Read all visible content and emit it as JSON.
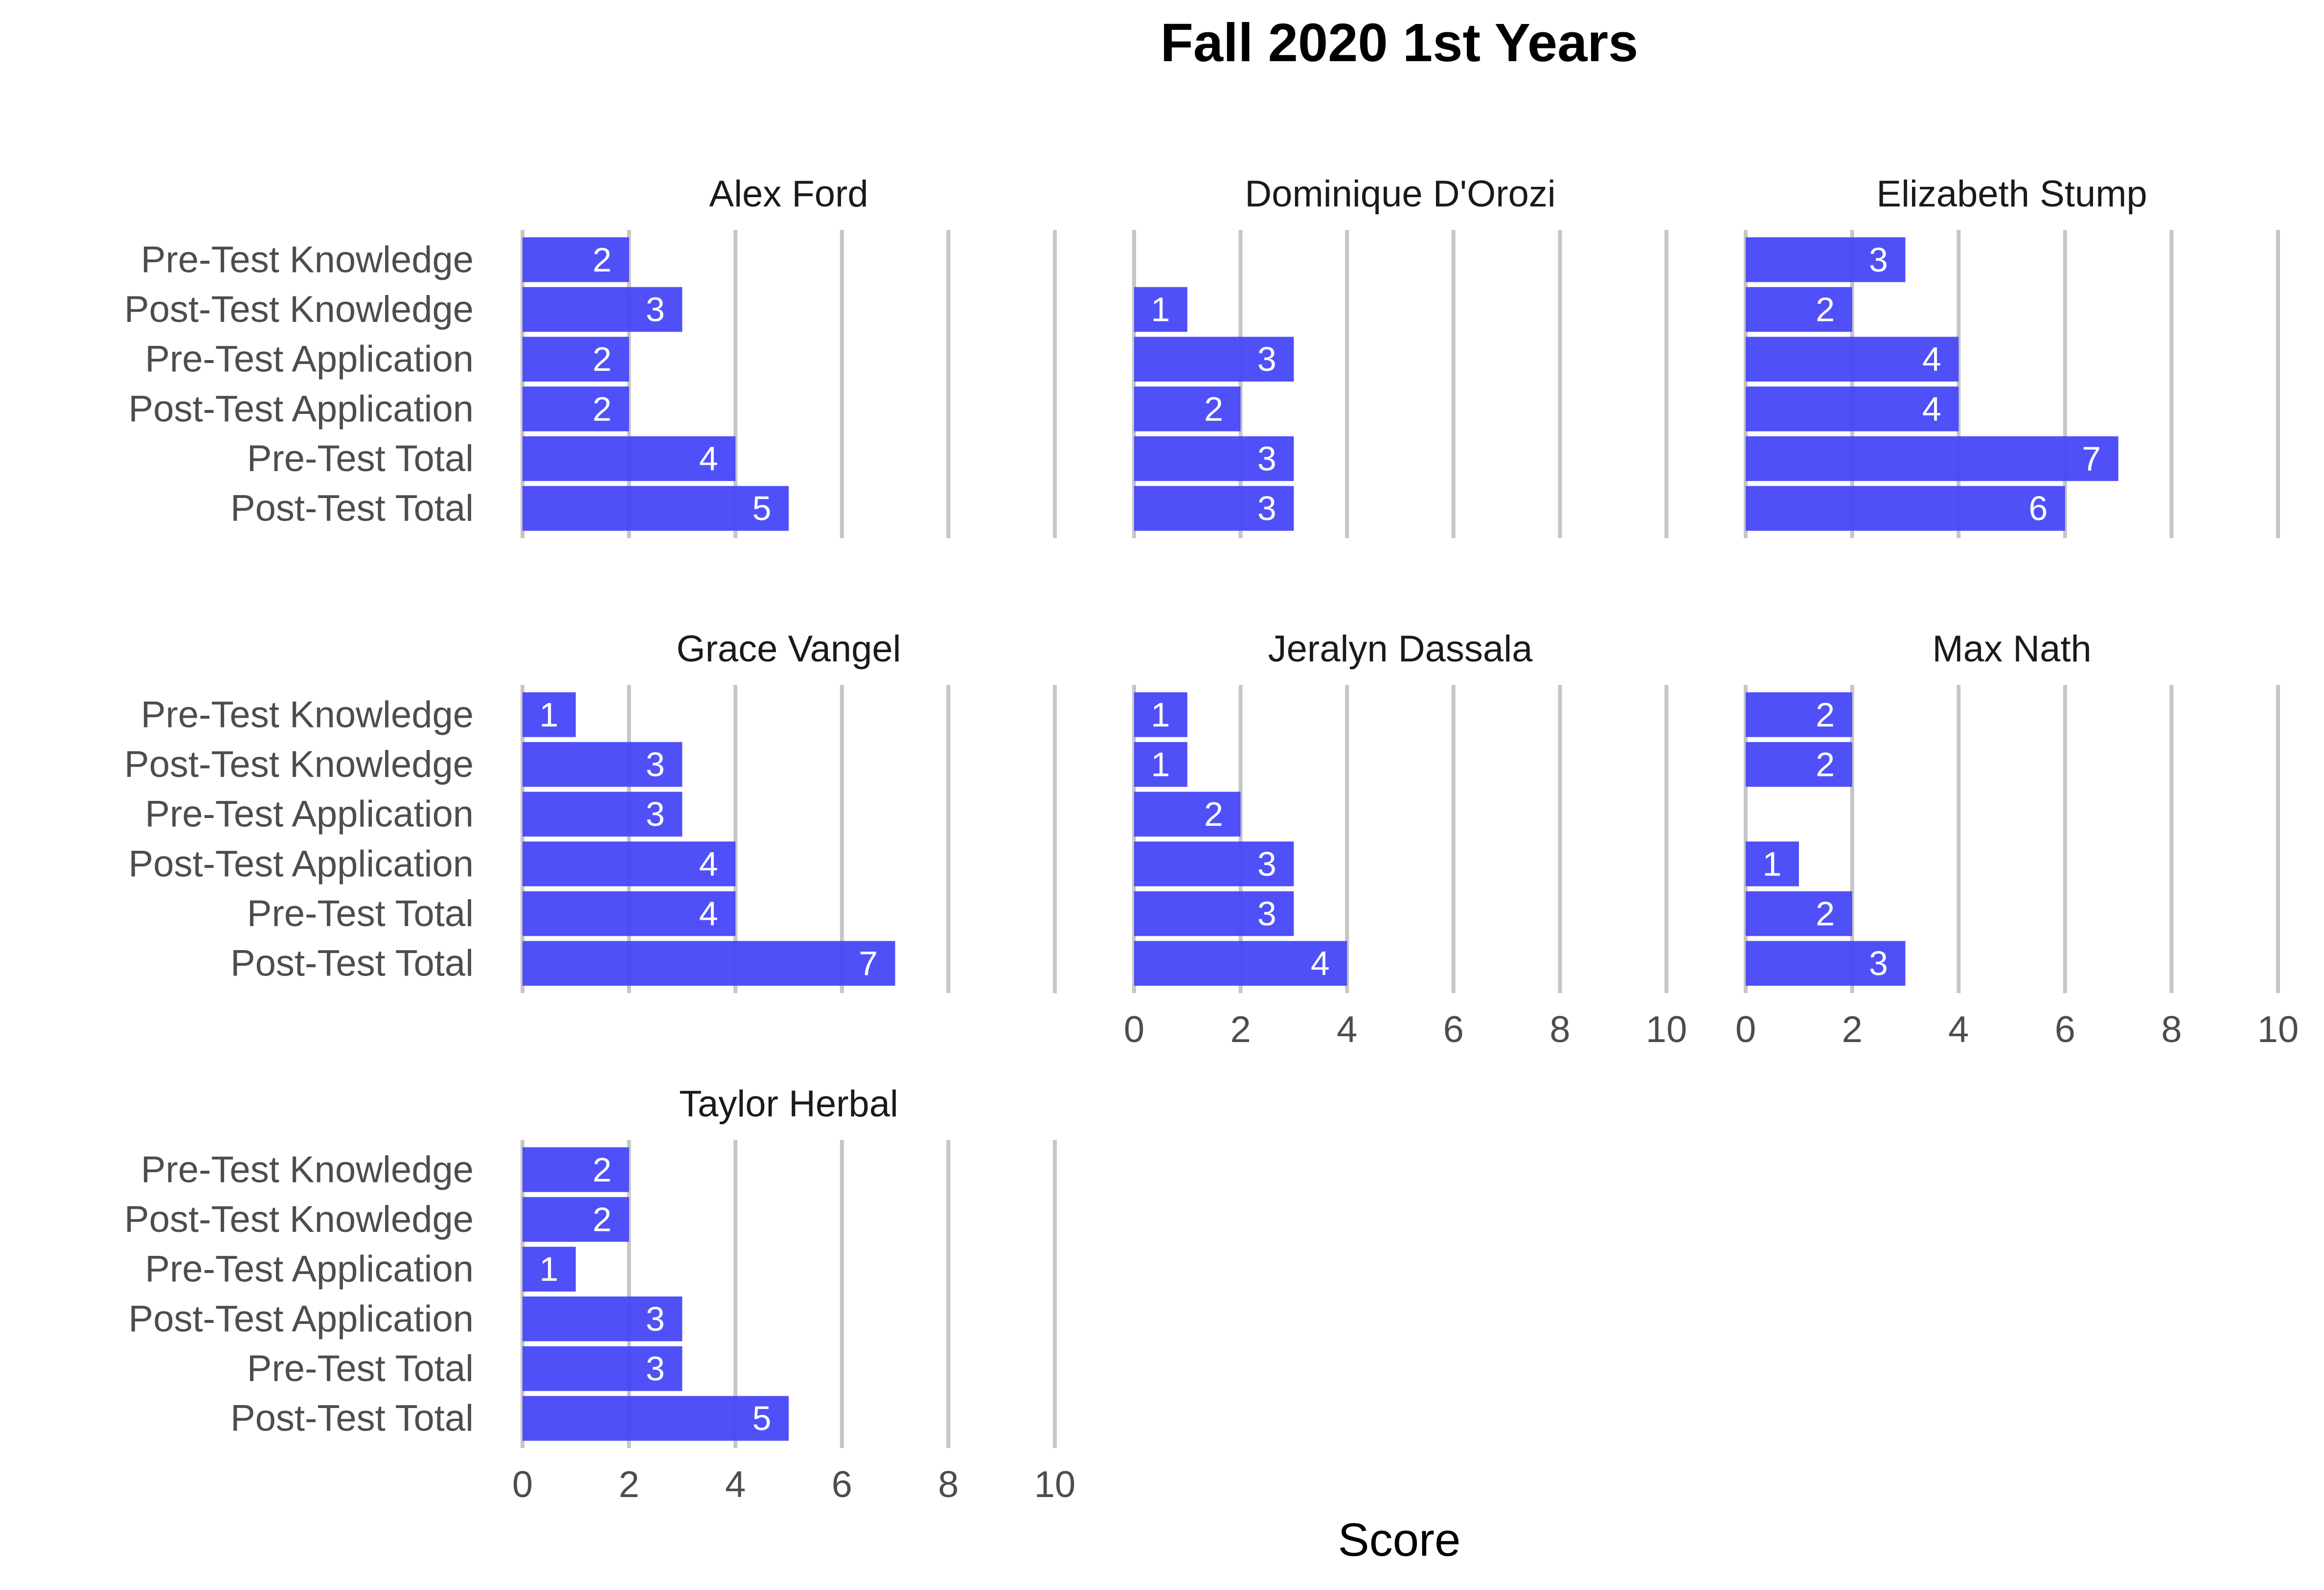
{
  "chart_data": {
    "type": "bar",
    "orientation": "horizontal",
    "title": "Fall 2020 1st Years",
    "xlabel": "Score",
    "ylabel": "",
    "xlim": [
      0,
      10
    ],
    "x_ticks": [
      0,
      2,
      4,
      6,
      8,
      10
    ],
    "grid": "vertical major lines",
    "legend": "none",
    "bar_color": "#4747F8",
    "grid_color": "#C6C6C6",
    "categories": [
      "Pre-Test Knowledge",
      "Post-Test Knowledge",
      "Pre-Test Application",
      "Post-Test Application",
      "Pre-Test Total",
      "Post-Test Total"
    ],
    "panels": [
      {
        "name": "Alex Ford",
        "values": [
          2,
          3,
          2,
          2,
          4,
          5
        ]
      },
      {
        "name": "Dominique D'Orozi",
        "values": [
          null,
          1,
          3,
          2,
          3,
          3
        ]
      },
      {
        "name": "Elizabeth Stump",
        "values": [
          3,
          2,
          4,
          4,
          7,
          6
        ]
      },
      {
        "name": "Grace Vangel",
        "values": [
          1,
          3,
          3,
          4,
          4,
          7
        ]
      },
      {
        "name": "Jeralyn Dassala",
        "values": [
          1,
          1,
          2,
          3,
          3,
          4
        ]
      },
      {
        "name": "Max Nath",
        "values": [
          2,
          2,
          null,
          1,
          2,
          3
        ]
      },
      {
        "name": "Taylor Herbal",
        "values": [
          2,
          2,
          1,
          3,
          3,
          5
        ]
      }
    ]
  }
}
